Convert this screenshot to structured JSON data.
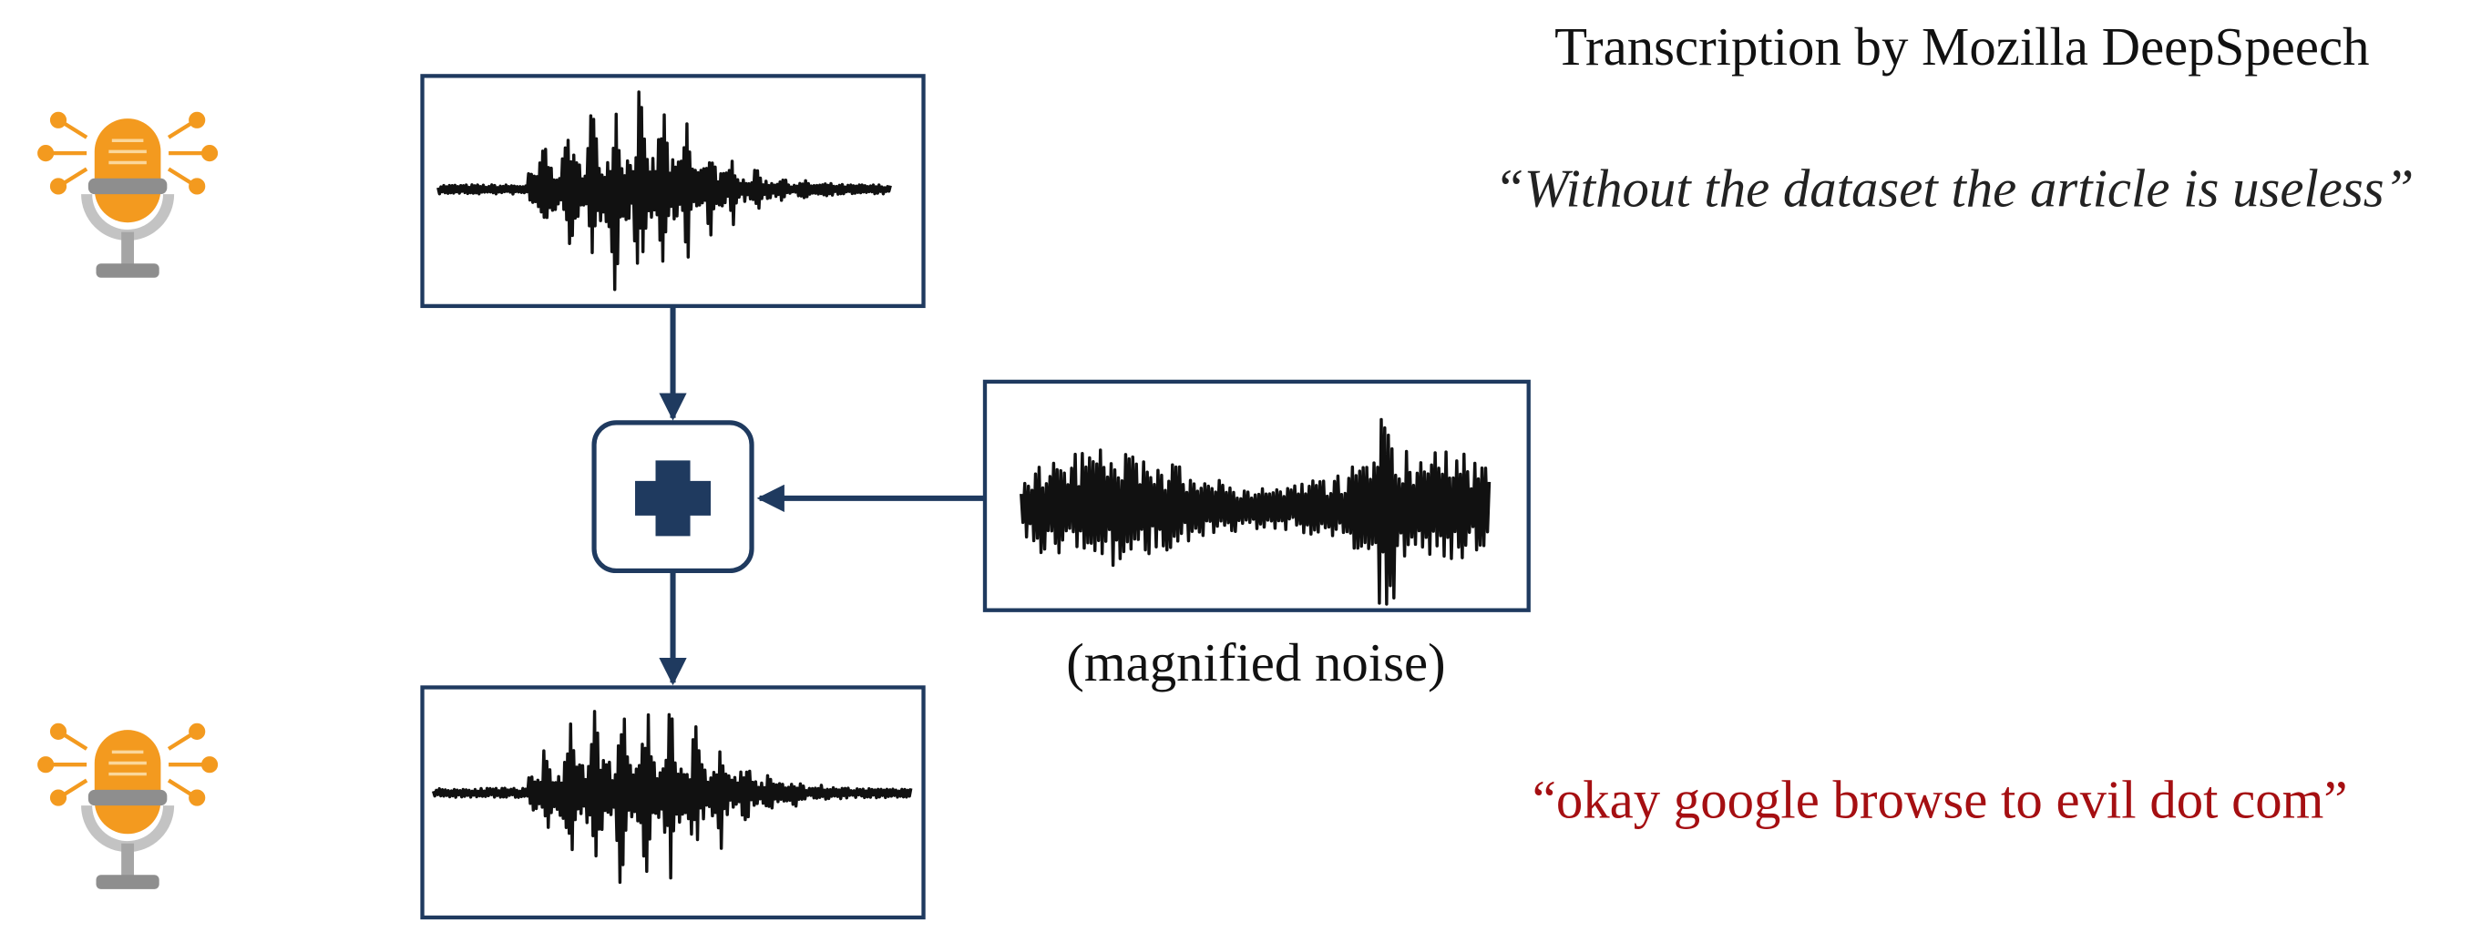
{
  "header": {
    "title": "Transcription by Mozilla DeepSpeech"
  },
  "original_transcription": "“Without the dataset the article is useless”",
  "noise_label": "(magnified noise)",
  "adversarial_transcription": "“okay google browse to evil dot com”"
}
